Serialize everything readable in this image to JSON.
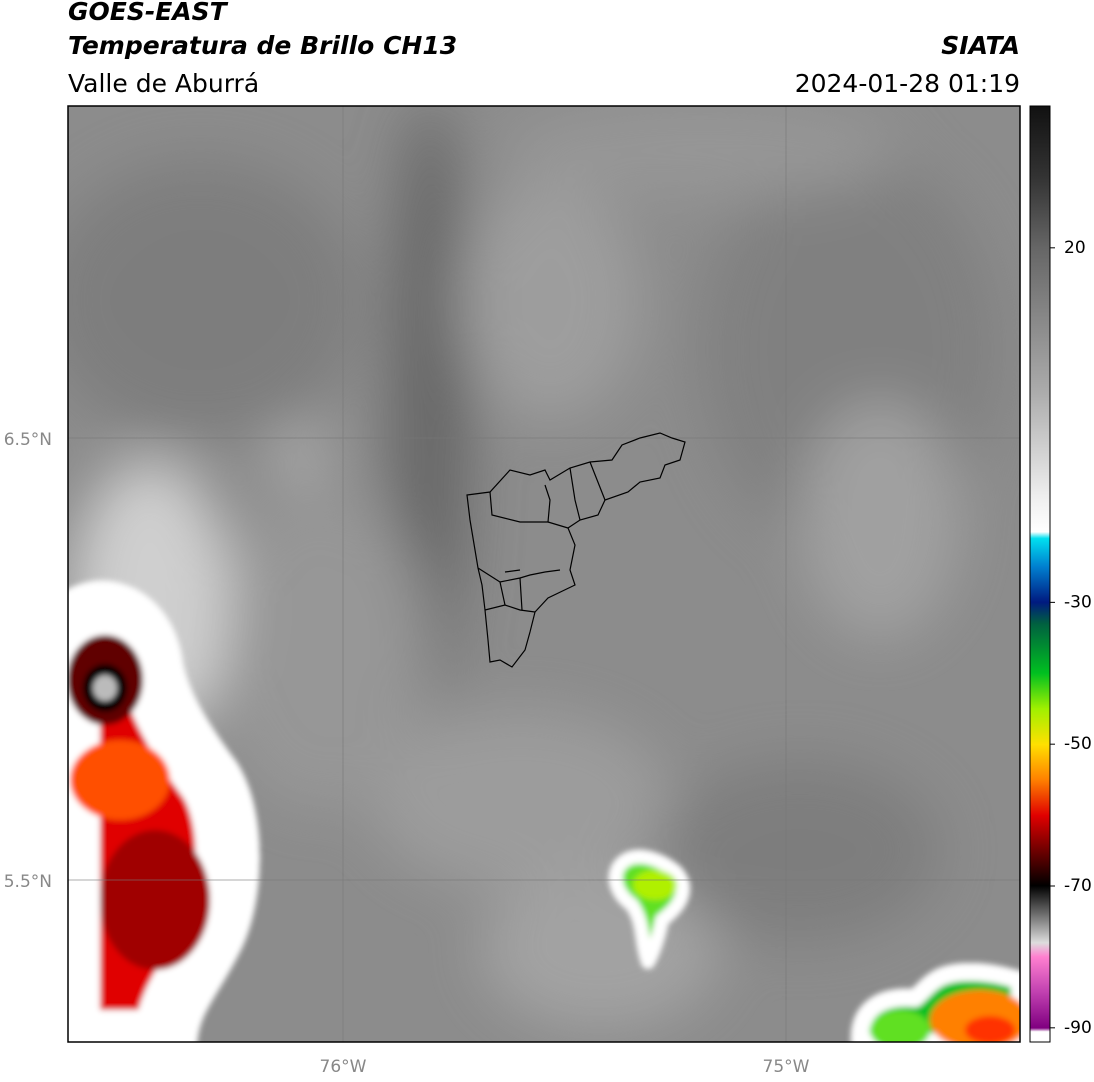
{
  "header": {
    "title": "GOES-EAST",
    "subtitle": "Temperatura de Brillo CH13",
    "region": "Valle de Aburrá",
    "source": "SIATA",
    "datetime": "2024-01-28 01:19"
  },
  "map": {
    "lat_ticks": [
      "6.5°N",
      "5.5°N"
    ],
    "lon_ticks": [
      "76°W",
      "75°W"
    ]
  },
  "colorbar": {
    "lim": [
      -92,
      40
    ],
    "ticks": [
      20,
      -30,
      -50,
      -70,
      -90
    ]
  }
}
